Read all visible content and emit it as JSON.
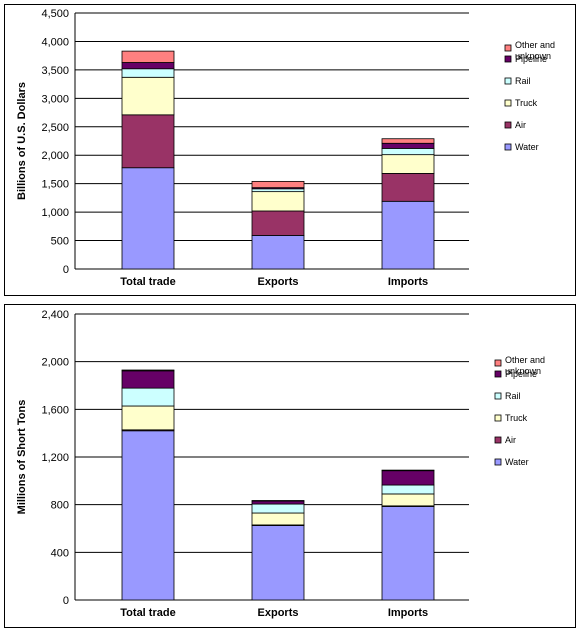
{
  "chart_data": [
    {
      "type": "bar",
      "stacked": true,
      "categories": [
        "Total trade",
        "Exports",
        "Imports"
      ],
      "ylabel": "Billions of U.S. Dollars",
      "ylim": [
        0,
        4500
      ],
      "yticks": [
        0,
        500,
        1000,
        1500,
        2000,
        2500,
        3000,
        3500,
        4000,
        4500
      ],
      "ytick_labels": [
        "0",
        "500",
        "1,000",
        "1,500",
        "2,000",
        "2,500",
        "3,000",
        "3,500",
        "4,000",
        "4,500"
      ],
      "grid": true,
      "legend_position": "right",
      "series": [
        {
          "name": "Water",
          "color": "#9999ff",
          "values": [
            1780,
            590,
            1190
          ]
        },
        {
          "name": "Air",
          "color": "#993366",
          "values": [
            930,
            430,
            490
          ]
        },
        {
          "name": "Truck",
          "color": "#ffffcc",
          "values": [
            660,
            340,
            330
          ]
        },
        {
          "name": "Rail",
          "color": "#ccffff",
          "values": [
            150,
            50,
            110
          ]
        },
        {
          "name": "Pipeline",
          "color": "#660066",
          "values": [
            110,
            20,
            90
          ]
        },
        {
          "name": "Other and unknown",
          "color": "#ff8080",
          "values": [
            200,
            110,
            80
          ]
        }
      ]
    },
    {
      "type": "bar",
      "stacked": true,
      "categories": [
        "Total trade",
        "Exports",
        "Imports"
      ],
      "ylabel": "Millions of Short Tons",
      "ylim": [
        0,
        2400
      ],
      "yticks": [
        0,
        400,
        800,
        1200,
        1600,
        2000,
        2400
      ],
      "ytick_labels": [
        "0",
        "400",
        "800",
        "1,200",
        "1,600",
        "2,000",
        "2,400"
      ],
      "grid": true,
      "legend_position": "right",
      "series": [
        {
          "name": "Water",
          "color": "#9999ff",
          "values": [
            1420,
            625,
            785
          ]
        },
        {
          "name": "Air",
          "color": "#993366",
          "values": [
            8,
            5,
            5
          ]
        },
        {
          "name": "Truck",
          "color": "#ffffcc",
          "values": [
            200,
            100,
            100
          ]
        },
        {
          "name": "Rail",
          "color": "#ccffff",
          "values": [
            150,
            75,
            75
          ]
        },
        {
          "name": "Pipeline",
          "color": "#660066",
          "values": [
            145,
            25,
            120
          ]
        },
        {
          "name": "Other and unknown",
          "color": "#ff8080",
          "values": [
            7,
            5,
            5
          ]
        }
      ]
    }
  ]
}
